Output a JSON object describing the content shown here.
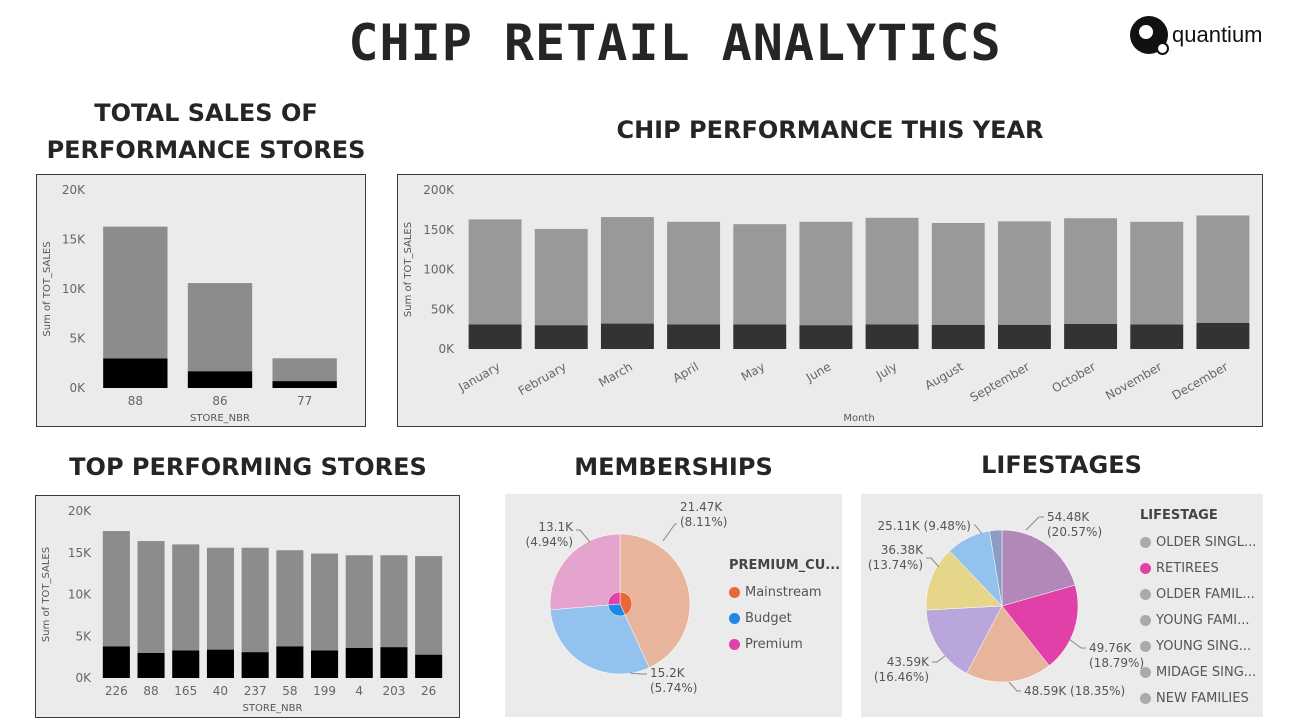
{
  "title": "CHIP RETAIL ANALYTICS",
  "logo": {
    "text": "quantium"
  },
  "sections": {
    "total_sales": "TOTAL SALES OF\nPERFORMANCE STORES",
    "chip_performance": "CHIP PERFORMANCE THIS YEAR",
    "top_stores": "TOP PERFORMING STORES",
    "memberships": "MEMBERSHIPS",
    "lifestages": "LIFESTAGES"
  },
  "colors": {
    "bar_light": "#8c8c8c",
    "bar_light2": "#999999",
    "bar_dark": "#000000",
    "bar_dark2": "#333333",
    "panel": "#ebebeb"
  },
  "chart_data": [
    {
      "id": "total_sales",
      "type": "bar",
      "categories": [
        "88",
        "86",
        "77"
      ],
      "series": [
        {
          "values": [
            13300,
            8900,
            2300
          ]
        },
        {
          "values": [
            3000,
            1700,
            700
          ]
        }
      ],
      "xlabel": "STORE_NBR",
      "ylabel": "Sum of TOT_SALES",
      "ylim": [
        0,
        20000
      ],
      "yticks": [
        "0K",
        "5K",
        "10K",
        "15K",
        "20K"
      ],
      "stacked": true
    },
    {
      "id": "chip_performance",
      "type": "bar",
      "categories": [
        "January",
        "February",
        "March",
        "April",
        "May",
        "June",
        "July",
        "August",
        "September",
        "October",
        "November",
        "December"
      ],
      "series": [
        {
          "values": [
            132000,
            121000,
            134000,
            129000,
            126000,
            130000,
            134000,
            128000,
            130000,
            133000,
            129000,
            135000
          ]
        },
        {
          "values": [
            31000,
            30000,
            32000,
            31000,
            31000,
            30000,
            31000,
            30500,
            30500,
            31500,
            31000,
            33000
          ]
        }
      ],
      "xlabel": "Month",
      "ylabel": "Sum of TOT_SALES",
      "ylim": [
        0,
        200000
      ],
      "yticks": [
        "0K",
        "50K",
        "100K",
        "150K",
        "200K"
      ],
      "stacked": true
    },
    {
      "id": "top_stores",
      "type": "bar",
      "categories": [
        "226",
        "88",
        "165",
        "40",
        "237",
        "58",
        "199",
        "4",
        "203",
        "26"
      ],
      "series": [
        {
          "values": [
            13800,
            13400,
            12700,
            12200,
            12500,
            11500,
            11600,
            11100,
            11000,
            11800
          ]
        },
        {
          "values": [
            3800,
            3000,
            3300,
            3400,
            3100,
            3800,
            3300,
            3600,
            3700,
            2800
          ]
        }
      ],
      "xlabel": "STORE_NBR",
      "ylabel": "Sum of TOT_SALES",
      "ylim": [
        0,
        20000
      ],
      "yticks": [
        "0K",
        "5K",
        "10K",
        "15K",
        "20K"
      ],
      "stacked": true
    },
    {
      "id": "memberships",
      "type": "pie",
      "legend_title": "PREMIUM_CU...",
      "outer": [
        {
          "label": "Mainstream",
          "value": 21.47,
          "text": "21.47K\n(8.11%)",
          "color": "#e8b49c"
        },
        {
          "label": "Budget",
          "value": 15.2,
          "text": "15.2K\n(5.74%)",
          "color": "#93c2ef"
        },
        {
          "label": "Premium",
          "value": 13.1,
          "text": "13.1K\n(4.94%)",
          "color": "#e4a4cd"
        }
      ],
      "legend": [
        {
          "label": "Mainstream",
          "color": "#e8683a"
        },
        {
          "label": "Budget",
          "color": "#1e88e5"
        },
        {
          "label": "Premium",
          "color": "#e040a8"
        }
      ]
    },
    {
      "id": "lifestages",
      "type": "pie",
      "legend_title": "LIFESTAGE",
      "outer": [
        {
          "value": 54.48,
          "text": "54.48K\n(20.57%)",
          "color": "#b288b8"
        },
        {
          "value": 49.76,
          "text": "49.76K\n(18.79%)",
          "color": "#e040a8"
        },
        {
          "value": 48.59,
          "text": "48.59K (18.35%)",
          "color": "#e8b49c"
        },
        {
          "value": 43.59,
          "text": "43.59K\n(16.46%)",
          "color": "#b8a6dc"
        },
        {
          "value": 36.38,
          "text": "36.38K\n(13.74%)",
          "color": "#e6d68a"
        },
        {
          "value": 25.11,
          "text": "25.11K (9.48%)",
          "color": "#93c2ef"
        },
        {
          "value": 7.0,
          "text": "",
          "color": "#8c9cc4"
        }
      ],
      "legend": [
        {
          "label": "OLDER SINGL...",
          "color": "#aaaaaa"
        },
        {
          "label": "RETIREES",
          "color": "#e040a8"
        },
        {
          "label": "OLDER FAMIL...",
          "color": "#aaaaaa"
        },
        {
          "label": "YOUNG FAMI...",
          "color": "#aaaaaa"
        },
        {
          "label": "YOUNG SING...",
          "color": "#aaaaaa"
        },
        {
          "label": "MIDAGE SING...",
          "color": "#aaaaaa"
        },
        {
          "label": "NEW FAMILIES",
          "color": "#aaaaaa"
        }
      ]
    }
  ]
}
